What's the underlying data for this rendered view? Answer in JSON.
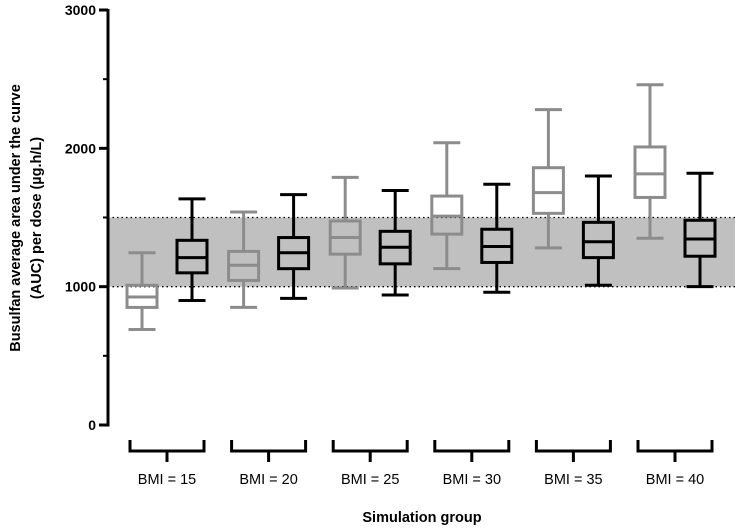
{
  "chart_data": {
    "type": "boxplot",
    "title": "",
    "xlabel": "Simulation group",
    "ylabel_line1": "Busulfan average area under the curve",
    "ylabel_line2": "(AUC) per dose (µg.h/L)",
    "ylim": [
      0,
      3000
    ],
    "yticks": [
      "0",
      "1000",
      "2000",
      "3000"
    ],
    "target_range": [
      1000,
      1500
    ],
    "colors": {
      "gray_series": "#8c8c8c",
      "black_series": "#000000",
      "target_band": "#c0c0c0"
    },
    "groups": [
      {
        "label": "BMI = 15",
        "boxes": [
          {
            "color": "gray",
            "whisker_low": 690,
            "q1": 850,
            "median": 925,
            "q3": 1010,
            "whisker_high": 1245
          },
          {
            "color": "black",
            "whisker_low": 900,
            "q1": 1100,
            "median": 1210,
            "q3": 1335,
            "whisker_high": 1635
          }
        ]
      },
      {
        "label": "BMI = 20",
        "boxes": [
          {
            "color": "gray",
            "whisker_low": 850,
            "q1": 1045,
            "median": 1155,
            "q3": 1255,
            "whisker_high": 1540
          },
          {
            "color": "black",
            "whisker_low": 915,
            "q1": 1130,
            "median": 1245,
            "q3": 1355,
            "whisker_high": 1665
          }
        ]
      },
      {
        "label": "BMI = 25",
        "boxes": [
          {
            "color": "gray",
            "whisker_low": 990,
            "q1": 1235,
            "median": 1355,
            "q3": 1475,
            "whisker_high": 1790
          },
          {
            "color": "black",
            "whisker_low": 940,
            "q1": 1165,
            "median": 1285,
            "q3": 1400,
            "whisker_high": 1695
          }
        ]
      },
      {
        "label": "BMI = 30",
        "boxes": [
          {
            "color": "gray",
            "whisker_low": 1130,
            "q1": 1380,
            "median": 1510,
            "q3": 1655,
            "whisker_high": 2040
          },
          {
            "color": "black",
            "whisker_low": 960,
            "q1": 1175,
            "median": 1290,
            "q3": 1415,
            "whisker_high": 1740
          }
        ]
      },
      {
        "label": "BMI = 35",
        "boxes": [
          {
            "color": "gray",
            "whisker_low": 1280,
            "q1": 1530,
            "median": 1680,
            "q3": 1860,
            "whisker_high": 2280
          },
          {
            "color": "black",
            "whisker_low": 1010,
            "q1": 1210,
            "median": 1325,
            "q3": 1465,
            "whisker_high": 1800
          }
        ]
      },
      {
        "label": "BMI = 40",
        "boxes": [
          {
            "color": "gray",
            "whisker_low": 1350,
            "q1": 1645,
            "median": 1815,
            "q3": 2010,
            "whisker_high": 2460
          },
          {
            "color": "black",
            "whisker_low": 1000,
            "q1": 1220,
            "median": 1345,
            "q3": 1480,
            "whisker_high": 1820
          }
        ]
      }
    ]
  }
}
